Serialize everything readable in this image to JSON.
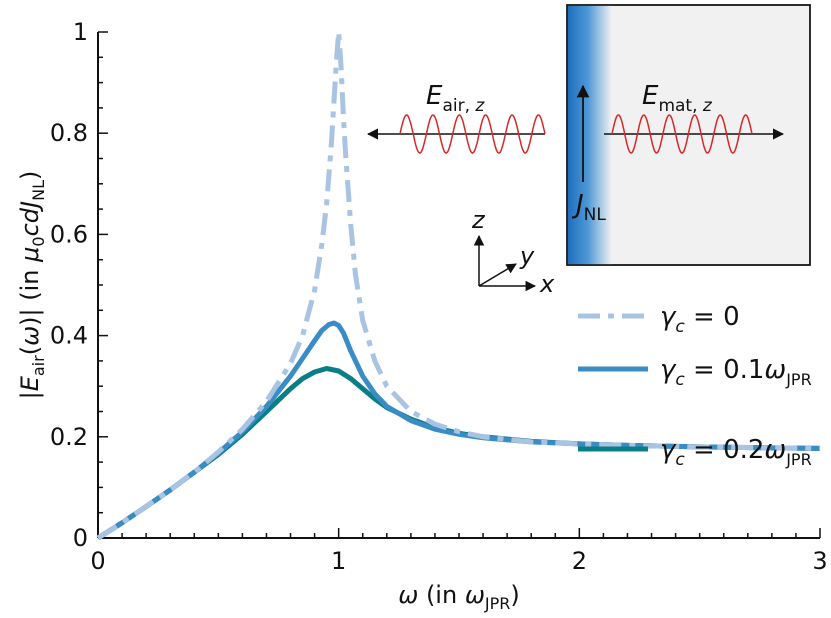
{
  "chart_data": {
    "type": "line",
    "xlabel": "ω (in ω_JPR)",
    "ylabel": "|E_air(ω)| (in μ0 c d J_NL)",
    "xlim": [
      0,
      3
    ],
    "ylim": [
      0,
      1
    ],
    "x_ticks": [
      "0",
      "1",
      "2",
      "3"
    ],
    "y_ticks": [
      "0",
      "0.2",
      "0.4",
      "0.6",
      "0.8",
      "1"
    ],
    "grid": false,
    "legend_position": "right",
    "series": [
      {
        "name": "γc = 0",
        "color": "#a9c4e2",
        "style": "dash-dot",
        "x": [
          0.0,
          0.1,
          0.2,
          0.3,
          0.4,
          0.5,
          0.6,
          0.7,
          0.8,
          0.85,
          0.9,
          0.93,
          0.95,
          0.97,
          0.98,
          0.99,
          1.0,
          1.01,
          1.02,
          1.03,
          1.05,
          1.07,
          1.1,
          1.15,
          1.2,
          1.3,
          1.4,
          1.5,
          1.6,
          1.8,
          2.0,
          2.2,
          2.5,
          2.8,
          3.0
        ],
        "y": [
          0.0,
          0.03,
          0.062,
          0.095,
          0.13,
          0.17,
          0.215,
          0.27,
          0.345,
          0.4,
          0.49,
          0.58,
          0.66,
          0.78,
          0.86,
          0.94,
          1.0,
          0.93,
          0.83,
          0.75,
          0.62,
          0.52,
          0.43,
          0.35,
          0.3,
          0.25,
          0.225,
          0.21,
          0.2,
          0.19,
          0.186,
          0.183,
          0.18,
          0.178,
          0.177
        ]
      },
      {
        "name": "γc = 0.1ω_JPR",
        "color": "#3a8cc4",
        "style": "solid",
        "x": [
          0.0,
          0.1,
          0.2,
          0.3,
          0.4,
          0.5,
          0.6,
          0.7,
          0.8,
          0.85,
          0.9,
          0.93,
          0.96,
          0.98,
          1.0,
          1.02,
          1.05,
          1.1,
          1.15,
          1.2,
          1.3,
          1.4,
          1.5,
          1.6,
          1.8,
          2.0,
          2.2,
          2.5,
          2.8,
          3.0
        ],
        "y": [
          0.0,
          0.03,
          0.062,
          0.095,
          0.13,
          0.168,
          0.21,
          0.26,
          0.32,
          0.355,
          0.39,
          0.41,
          0.422,
          0.425,
          0.42,
          0.405,
          0.37,
          0.32,
          0.285,
          0.26,
          0.232,
          0.215,
          0.205,
          0.198,
          0.19,
          0.186,
          0.183,
          0.18,
          0.178,
          0.177
        ]
      },
      {
        "name": "γc = 0.2ω_JPR",
        "color": "#0a7e86",
        "style": "solid",
        "x": [
          0.0,
          0.1,
          0.2,
          0.3,
          0.4,
          0.5,
          0.6,
          0.7,
          0.8,
          0.85,
          0.9,
          0.95,
          1.0,
          1.05,
          1.1,
          1.15,
          1.2,
          1.3,
          1.4,
          1.5,
          1.6,
          1.8,
          2.0,
          2.2,
          2.5,
          2.8,
          3.0
        ],
        "y": [
          0.0,
          0.03,
          0.062,
          0.095,
          0.13,
          0.165,
          0.205,
          0.25,
          0.295,
          0.315,
          0.328,
          0.335,
          0.33,
          0.315,
          0.295,
          0.275,
          0.258,
          0.235,
          0.218,
          0.207,
          0.2,
          0.191,
          0.186,
          0.183,
          0.18,
          0.178,
          0.177
        ]
      }
    ]
  },
  "inset": {
    "wave_left_label": "E_air, z",
    "wave_right_label": "E_mat, z",
    "current_label": "J_NL",
    "axis_z": "z",
    "axis_y": "y",
    "axis_x": "x",
    "wave_color": "#d62728",
    "gradient_color": "#1f6fbf"
  }
}
